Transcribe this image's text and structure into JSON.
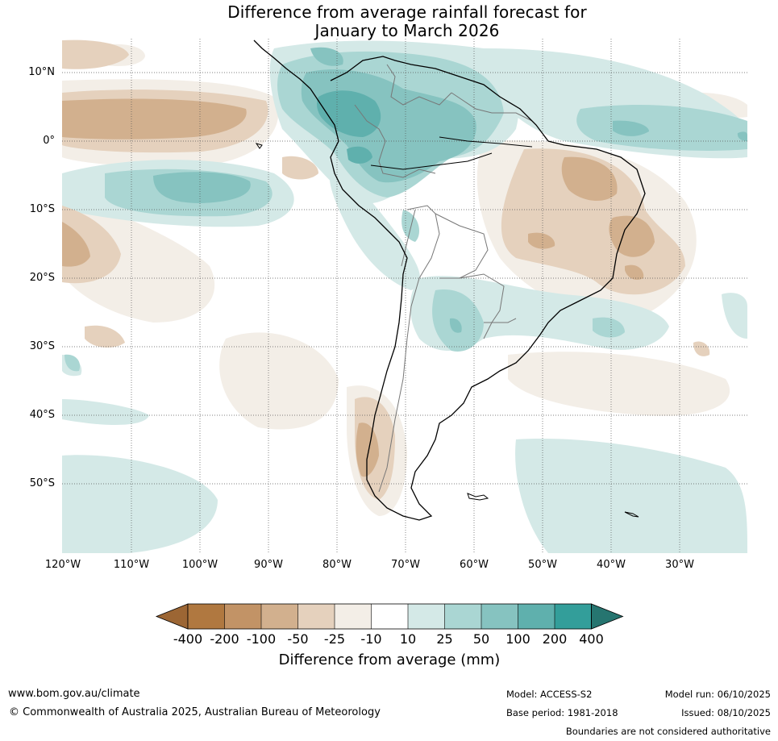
{
  "title": {
    "line1": "Difference from average rainfall forecast for",
    "line2": "January to March 2026"
  },
  "map": {
    "latitude_labels": [
      "10°N",
      "0°",
      "10°S",
      "20°S",
      "30°S",
      "40°S",
      "50°S"
    ],
    "longitude_labels": [
      "120°W",
      "110°W",
      "100°W",
      "90°W",
      "80°W",
      "70°W",
      "60°W",
      "50°W",
      "40°W",
      "30°W"
    ]
  },
  "colorbar": {
    "title": "Difference from average (mm)",
    "ticks": [
      "-400",
      "-200",
      "-100",
      "-50",
      "-25",
      "-10",
      "10",
      "25",
      "50",
      "100",
      "200",
      "400"
    ],
    "colors": [
      "#9c6634",
      "#b07840",
      "#c29366",
      "#d2b08e",
      "#e5d1bd",
      "#f3eee7",
      "#ffffff",
      "#d4e9e7",
      "#aad6d3",
      "#86c3c0",
      "#5fb0ad",
      "#339e9a",
      "#267570"
    ]
  },
  "footer": {
    "website": "www.bom.gov.au/climate",
    "copyright": "© Commonwealth of Australia 2025, Australian Bureau of Meteorology",
    "model": "Model: ACCESS-S2",
    "base_period": "Base period: 1981-2018",
    "model_run": "Model run: 06/10/2025",
    "issued": "Issued: 08/10/2025",
    "disclaimer": "Boundaries are not considered authoritative"
  }
}
